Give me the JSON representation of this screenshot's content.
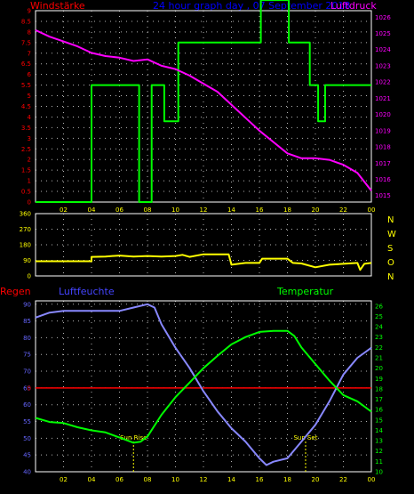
{
  "labels": {
    "wind_speed": "Windstärke",
    "graph_title": "24 hour graph day , 07 September 2018",
    "pressure": "Luftdruck",
    "rain": "Regen",
    "humidity": "Luftfeuchte",
    "temperature": "Temperatur",
    "sunrise": "Sun Rise",
    "sunset": "Sun Set"
  },
  "compass": [
    "N",
    "W",
    "S",
    "O",
    "N"
  ],
  "colors": {
    "background": "#000000",
    "frame": "#ffffff",
    "grid": "#ffffff",
    "wind_label": "#ff0000",
    "title": "#0000ff",
    "pressure_label": "#ff00ff",
    "wind_speed_line": "#00ff00",
    "pressure_line": "#ff00ff",
    "wind_dir_line": "#ffff00",
    "humidity_line": "#8888ff",
    "temperature_line": "#00ff00",
    "rain_line": "#ff0000",
    "sun_markers": "#ffff00",
    "x_ticks": "#ffff00",
    "compass_text": "#ffff00",
    "rain_label": "#ff0000",
    "humidity_label": "#4444ff",
    "temperature_label": "#00ff00"
  },
  "chart_data": [
    {
      "type": "line",
      "x_ticks": [
        "02",
        "04",
        "06",
        "08",
        "10",
        "12",
        "14",
        "16",
        "18",
        "20",
        "22",
        "00"
      ],
      "xlim": [
        0,
        24
      ],
      "y_left": {
        "ticks": [
          "0",
          "0.5",
          "1",
          "1.5",
          "2",
          "2.5",
          "3",
          "3.5",
          "4",
          "4.5",
          "5",
          "5.5",
          "6",
          "6.5",
          "7",
          "7.5",
          "8",
          "8.5",
          "9"
        ],
        "ylim": [
          0,
          9
        ]
      },
      "y_right": {
        "ticks": [
          "1015",
          "1016",
          "1017",
          "1018",
          "1019",
          "1020",
          "1021",
          "1022",
          "1023",
          "1024",
          "1025",
          "1026"
        ],
        "ylim": [
          1014.6,
          1026.4
        ]
      },
      "series": [
        {
          "axis": "left",
          "values": [
            [
              0,
              0
            ],
            [
              4,
              0
            ],
            [
              4,
              5.5
            ],
            [
              7.4,
              5.5
            ],
            [
              7.4,
              0
            ],
            [
              8.3,
              0
            ],
            [
              8.3,
              5.5
            ],
            [
              9.2,
              5.5
            ],
            [
              9.2,
              3.8
            ],
            [
              10.2,
              3.8
            ],
            [
              10.2,
              7.5
            ],
            [
              16.1,
              7.5
            ],
            [
              16.1,
              9.5
            ],
            [
              18.1,
              9.5
            ],
            [
              18.1,
              7.5
            ],
            [
              19.6,
              7.5
            ],
            [
              19.6,
              5.5
            ],
            [
              20.2,
              5.5
            ],
            [
              20.2,
              3.8
            ],
            [
              20.7,
              3.8
            ],
            [
              20.7,
              5.5
            ],
            [
              24,
              5.5
            ]
          ]
        },
        {
          "axis": "right",
          "values": [
            [
              0,
              1025.2
            ],
            [
              1,
              1024.8
            ],
            [
              2,
              1024.5
            ],
            [
              3,
              1024.2
            ],
            [
              4,
              1023.8
            ],
            [
              5,
              1023.6
            ],
            [
              6,
              1023.5
            ],
            [
              7,
              1023.3
            ],
            [
              8,
              1023.4
            ],
            [
              9,
              1023.0
            ],
            [
              10,
              1022.8
            ],
            [
              11,
              1022.4
            ],
            [
              12,
              1021.9
            ],
            [
              13,
              1021.4
            ],
            [
              14,
              1020.6
            ],
            [
              15,
              1019.8
            ],
            [
              16,
              1019.0
            ],
            [
              17,
              1018.3
            ],
            [
              18,
              1017.6
            ],
            [
              19,
              1017.3
            ],
            [
              20,
              1017.3
            ],
            [
              21,
              1017.2
            ],
            [
              22,
              1016.9
            ],
            [
              23,
              1016.4
            ],
            [
              24,
              1015.3
            ]
          ]
        }
      ]
    },
    {
      "type": "line",
      "x_ticks": [],
      "xlim": [
        0,
        24
      ],
      "y_left": {
        "ticks": [
          "0",
          "90",
          "180",
          "270",
          "360"
        ],
        "ylim": [
          0,
          360
        ]
      },
      "series": [
        {
          "axis": "left",
          "values": [
            [
              0,
              85
            ],
            [
              4,
              85
            ],
            [
              4,
              110
            ],
            [
              5,
              112
            ],
            [
              6,
              118
            ],
            [
              7,
              112
            ],
            [
              8,
              115
            ],
            [
              9,
              112
            ],
            [
              10,
              115
            ],
            [
              10.5,
              122
            ],
            [
              11,
              110
            ],
            [
              12,
              125
            ],
            [
              13,
              125
            ],
            [
              13.8,
              125
            ],
            [
              14,
              65
            ],
            [
              15,
              75
            ],
            [
              16,
              75
            ],
            [
              16.2,
              100
            ],
            [
              18,
              100
            ],
            [
              18.4,
              75
            ],
            [
              19,
              72
            ],
            [
              20,
              50
            ],
            [
              21,
              65
            ],
            [
              22,
              70
            ],
            [
              23,
              75
            ],
            [
              23.2,
              35
            ],
            [
              23.5,
              70
            ],
            [
              24,
              75
            ]
          ]
        }
      ]
    },
    {
      "type": "line",
      "x_ticks": [
        "02",
        "04",
        "06",
        "08",
        "10",
        "12",
        "14",
        "16",
        "18",
        "20",
        "22",
        "00"
      ],
      "xlim": [
        0,
        24
      ],
      "y_left": {
        "ticks": [
          "40",
          "45",
          "50",
          "55",
          "60",
          "65",
          "70",
          "75",
          "80",
          "85",
          "90"
        ],
        "ylim": [
          40,
          91
        ]
      },
      "y_right": {
        "ticks": [
          "10",
          "11",
          "12",
          "13",
          "14",
          "15",
          "16",
          "17",
          "18",
          "19",
          "20",
          "21",
          "22",
          "23",
          "24",
          "25",
          "26"
        ],
        "ylim": [
          10,
          26.5
        ]
      },
      "rain_marker": {
        "label": "0"
      },
      "series": [
        {
          "axis": "left",
          "values": [
            [
              0,
              86
            ],
            [
              1,
              87.5
            ],
            [
              2,
              88
            ],
            [
              3,
              88
            ],
            [
              4,
              88
            ],
            [
              5,
              88
            ],
            [
              6,
              88
            ],
            [
              7,
              89
            ],
            [
              8,
              90
            ],
            [
              8.5,
              89
            ],
            [
              9,
              84
            ],
            [
              10,
              77
            ],
            [
              11,
              71
            ],
            [
              12,
              64
            ],
            [
              13,
              58
            ],
            [
              14,
              53
            ],
            [
              15,
              49
            ],
            [
              16,
              44
            ],
            [
              16.5,
              42
            ],
            [
              17,
              43
            ],
            [
              18,
              44
            ],
            [
              19,
              49
            ],
            [
              20,
              54
            ],
            [
              21,
              61
            ],
            [
              22,
              69
            ],
            [
              23,
              74
            ],
            [
              24,
              77
            ]
          ]
        },
        {
          "axis": "right",
          "values": [
            [
              0,
              15.2
            ],
            [
              1,
              14.8
            ],
            [
              2,
              14.7
            ],
            [
              3,
              14.3
            ],
            [
              4,
              14.0
            ],
            [
              5,
              13.8
            ],
            [
              6,
              13.3
            ],
            [
              7,
              12.8
            ],
            [
              7.5,
              12.9
            ],
            [
              8,
              13.4
            ],
            [
              9,
              15.5
            ],
            [
              10,
              17.2
            ],
            [
              11,
              18.6
            ],
            [
              12,
              20.0
            ],
            [
              13,
              21.2
            ],
            [
              14,
              22.3
            ],
            [
              15,
              23.0
            ],
            [
              16,
              23.5
            ],
            [
              17,
              23.6
            ],
            [
              18,
              23.6
            ],
            [
              18.5,
              23.1
            ],
            [
              19,
              22.0
            ],
            [
              20,
              20.4
            ],
            [
              21,
              18.8
            ],
            [
              22,
              17.4
            ],
            [
              23,
              16.8
            ],
            [
              24,
              15.8
            ]
          ]
        }
      ],
      "annotations": [
        {
          "label": "Sun Rise",
          "x": 7.0
        },
        {
          "label": "Sun Set",
          "x": 19.3
        }
      ]
    }
  ]
}
